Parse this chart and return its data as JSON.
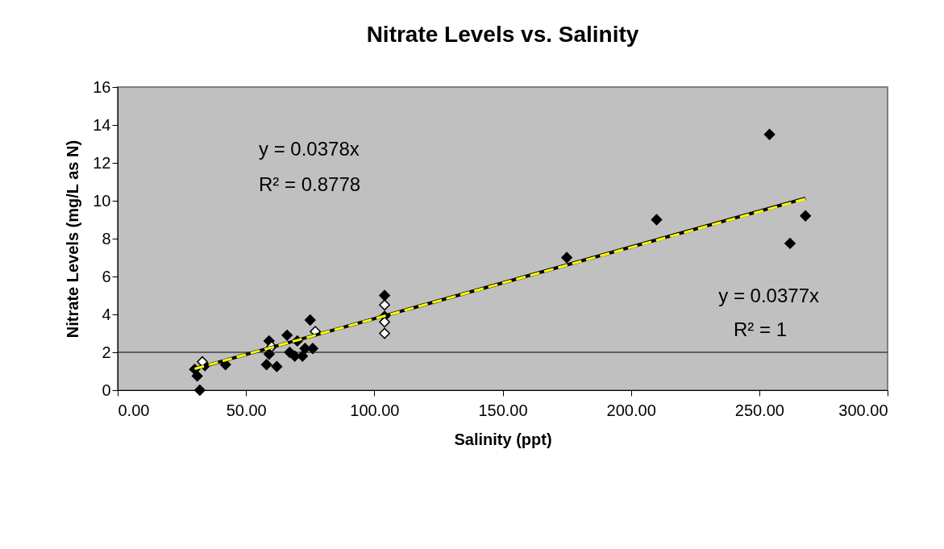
{
  "chart_data": {
    "type": "scatter",
    "title": "Nitrate Levels vs. Salinity",
    "xlabel": "Salinity (ppt)",
    "ylabel": "Nitrate Levels (mg/L as N)",
    "series": [
      {
        "color": "#000000",
        "marker": "diamond",
        "x": [
          30,
          31,
          32,
          34,
          42,
          58,
          59,
          59,
          62,
          66,
          67,
          69,
          70,
          72,
          73,
          75,
          76,
          104,
          104,
          175,
          210,
          254,
          262,
          268
        ],
        "values": [
          1.1,
          0.75,
          0,
          1.3,
          1.35,
          1.35,
          2.6,
          1.9,
          1.25,
          2.9,
          2.0,
          1.8,
          2.6,
          1.8,
          2.2,
          3.7,
          2.2,
          5.0,
          3.9,
          7.0,
          9.0,
          13.5,
          7.75,
          9.2
        ]
      },
      {
        "color": "#ffffff",
        "marker": "diamond",
        "x": [
          33,
          60,
          77,
          104,
          104,
          104
        ],
        "values": [
          1.5,
          2.3,
          3.1,
          4.5,
          3.6,
          3.0
        ]
      },
      {
        "type": "line",
        "color": "#000000",
        "line_style": "solid",
        "x": [
          30,
          268
        ],
        "values": [
          1.13,
          10.13
        ]
      },
      {
        "type": "line",
        "color": "#ffff00",
        "line_style": "dashed",
        "x": [
          30,
          268
        ],
        "values": [
          1.13,
          10.1
        ]
      }
    ],
    "xlim": [
      0,
      300
    ],
    "xticks": [
      {
        "value": 0,
        "label": "0.00"
      },
      {
        "value": 50,
        "label": "50.00"
      },
      {
        "value": 100,
        "label": "100.00"
      },
      {
        "value": 150,
        "label": "150.00"
      },
      {
        "value": 200,
        "label": "200.00"
      },
      {
        "value": 250,
        "label": "250.00"
      },
      {
        "value": 300,
        "label": "300.00"
      }
    ],
    "ylim": [
      0,
      16
    ],
    "yticks": [
      0,
      2,
      4,
      6,
      8,
      10,
      12,
      14,
      16
    ],
    "ref_lines": [
      {
        "axis": "y",
        "value": 2,
        "color": "#000000"
      }
    ],
    "annotations": [
      "y = 0.0378x",
      "R² = 0.8778",
      "y = 0.0377x",
      "R² = 1"
    ],
    "grid": false
  }
}
